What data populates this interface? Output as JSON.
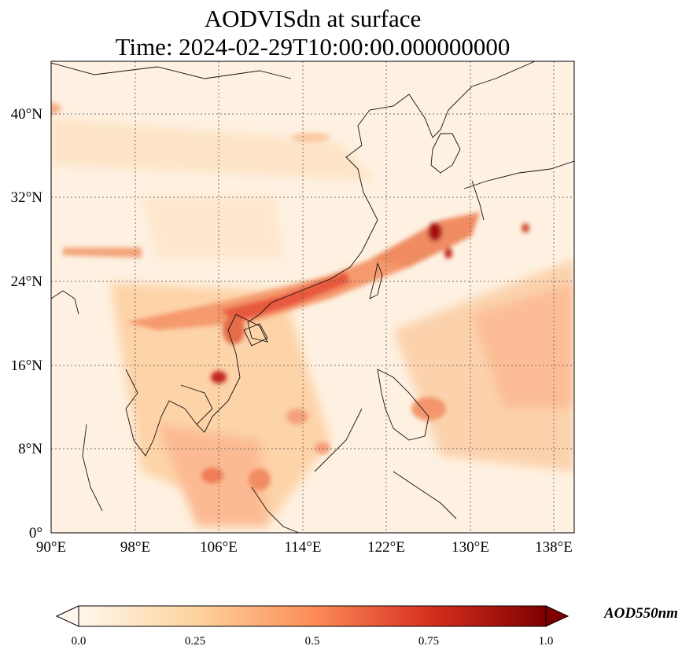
{
  "title_line1": "AODVISdn at surface",
  "title_line2": "Time: 2024-02-29T10:00:00.000000000",
  "map": {
    "lon_range": [
      90,
      140
    ],
    "lat_range": [
      0,
      45
    ],
    "lon_ticks": [
      "90°E",
      "98°E",
      "106°E",
      "114°E",
      "122°E",
      "130°E",
      "138°E"
    ],
    "lat_ticks": [
      "0°",
      "8°N",
      "16°N",
      "24°N",
      "32°N",
      "40°N"
    ],
    "colormap": "OrRd",
    "colors": {
      "low": "#fff7ec",
      "mid": "#fc8d59",
      "high": "#7f0000"
    }
  },
  "colorbar": {
    "label": "AOD550nm",
    "ticks": [
      "0.0",
      "0.25",
      "0.5",
      "0.75",
      "1.0"
    ],
    "range": [
      0.0,
      1.0
    ],
    "extend": "both"
  }
}
